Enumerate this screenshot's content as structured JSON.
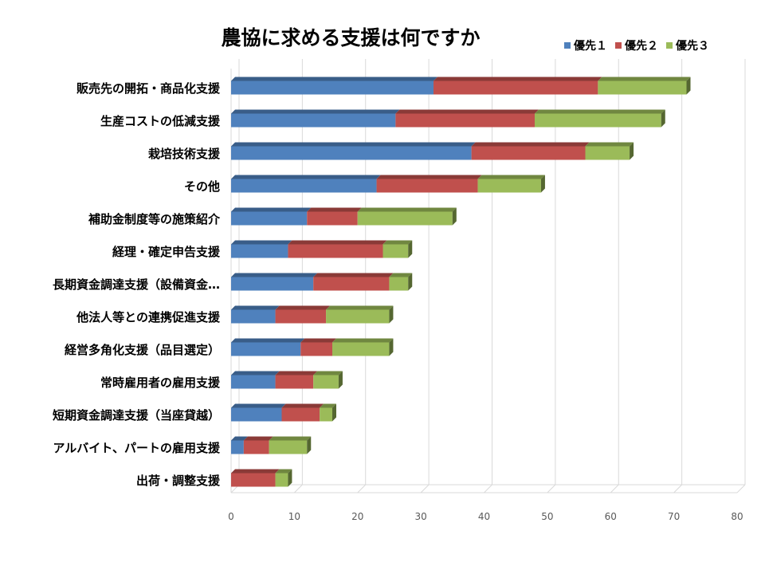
{
  "chart_data": {
    "type": "bar",
    "orientation": "horizontal",
    "stacked": true,
    "style": "3d",
    "title": "農協に求める支援は何ですか",
    "categories": [
      "販売先の開拓・商品化支援",
      "生産コストの低減支援",
      "栽培技術支援",
      "その他",
      "補助金制度等の施策紹介",
      "経理・確定申告支援",
      "長期資金調達支援（設備資金…",
      "他法人等との連携促進支援",
      "経営多角化支援（品目選定）",
      "常時雇用者の雇用支援",
      "短期資金調達支援（当座貸越）",
      "アルバイト、パートの雇用支援",
      "出荷・調整支援"
    ],
    "series": [
      {
        "name": "優先１",
        "color": "#4f81bd",
        "values": [
          32,
          26,
          38,
          23,
          12,
          9,
          13,
          7,
          11,
          7,
          8,
          2,
          0
        ]
      },
      {
        "name": "優先２",
        "color": "#c0504d",
        "values": [
          26,
          22,
          18,
          16,
          8,
          15,
          12,
          8,
          5,
          6,
          6,
          4,
          7
        ]
      },
      {
        "name": "優先３",
        "color": "#9bbb59",
        "values": [
          14,
          20,
          7,
          10,
          15,
          4,
          3,
          10,
          9,
          4,
          2,
          6,
          2
        ]
      }
    ],
    "xlim": [
      0,
      80
    ],
    "xticks": [
      "0",
      "10",
      "20",
      "30",
      "40",
      "50",
      "60",
      "70",
      "80"
    ],
    "grid": true,
    "legend_position": "top-right"
  }
}
